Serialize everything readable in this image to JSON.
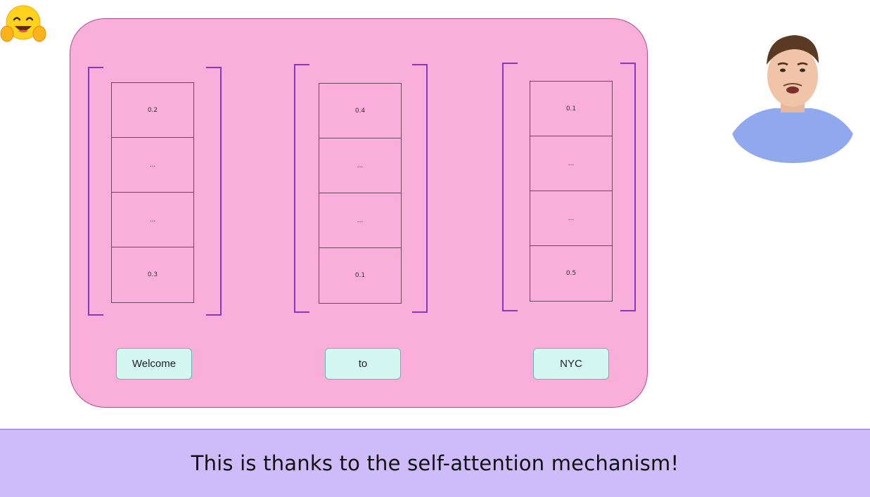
{
  "logo": {
    "icon": "hugging-face-emoji-icon"
  },
  "diagram": {
    "columns": [
      {
        "token": "Welcome",
        "cells": [
          "0.2",
          "...",
          "...",
          "0.3"
        ]
      },
      {
        "token": "to",
        "cells": [
          "0.4",
          "...",
          "...",
          "0.1"
        ]
      },
      {
        "token": "NYC",
        "cells": [
          "0.1",
          "...",
          "...",
          "0.5"
        ]
      }
    ]
  },
  "presenter": {
    "icon": "presenter-video-icon"
  },
  "caption": {
    "text": "This is thanks to the self-attention mechanism!"
  },
  "colors": {
    "panel": "#f9afd9",
    "bracket": "#8a36c8",
    "token_bg": "#d4f7f1",
    "caption_bg": "#cdbcf9"
  }
}
